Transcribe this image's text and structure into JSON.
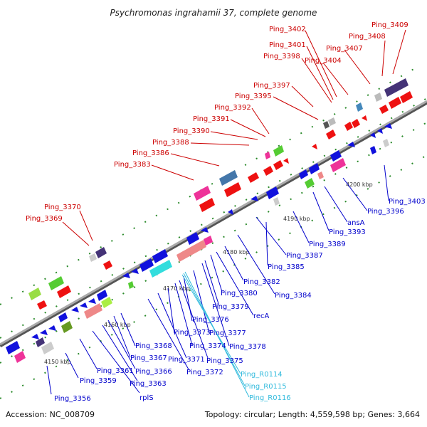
{
  "title": "Psychromonas ingrahamii 37, complete genome",
  "footer": {
    "accession": "Accession: NC_008709",
    "summary": "Topology: circular; Length: 4,559,598 bp; Genes: 3,664"
  },
  "colors": {
    "top_strand_label": "#cc0000",
    "bottom_strand_label": "#0000cc",
    "rna_label": "#33bbdd",
    "backbone": "#888888"
  },
  "ticks": [
    "4150 kbp",
    "4160 kbp",
    "4170 kbp",
    "4180 kbp",
    "4190 kbp",
    "4200 kbp"
  ],
  "top_labels": [
    "Ping_3369",
    "Ping_3370",
    "Ping_3383",
    "Ping_3386",
    "Ping_3388",
    "Ping_3390",
    "Ping_3391",
    "Ping_3392",
    "Ping_3395",
    "Ping_3397",
    "Ping_3398",
    "Ping_3401",
    "Ping_3402",
    "Ping_3404",
    "Ping_3407",
    "Ping_3408",
    "Ping_3409"
  ],
  "bottom_labels": [
    "Ping_3356",
    "Ping_3359",
    "Ping_3361",
    "rplS",
    "Ping_3363",
    "Ping_3366",
    "Ping_3367",
    "Ping_3368",
    "Ping_3371",
    "Ping_3372",
    "Ping_3373",
    "Ping_3374",
    "Ping_3375",
    "Ping_3376",
    "Ping_3377",
    "Ping_3378",
    "Ping_3379",
    "Ping_3380",
    "recA",
    "Ping_3382",
    "Ping_3384",
    "Ping_3385",
    "Ping_3387",
    "Ping_3389",
    "Ping_3393",
    "ansA",
    "Ping_3396",
    "Ping_3403"
  ],
  "rna_labels": [
    "Ping_R0114",
    "Ping_R0115",
    "Ping_R0116"
  ]
}
